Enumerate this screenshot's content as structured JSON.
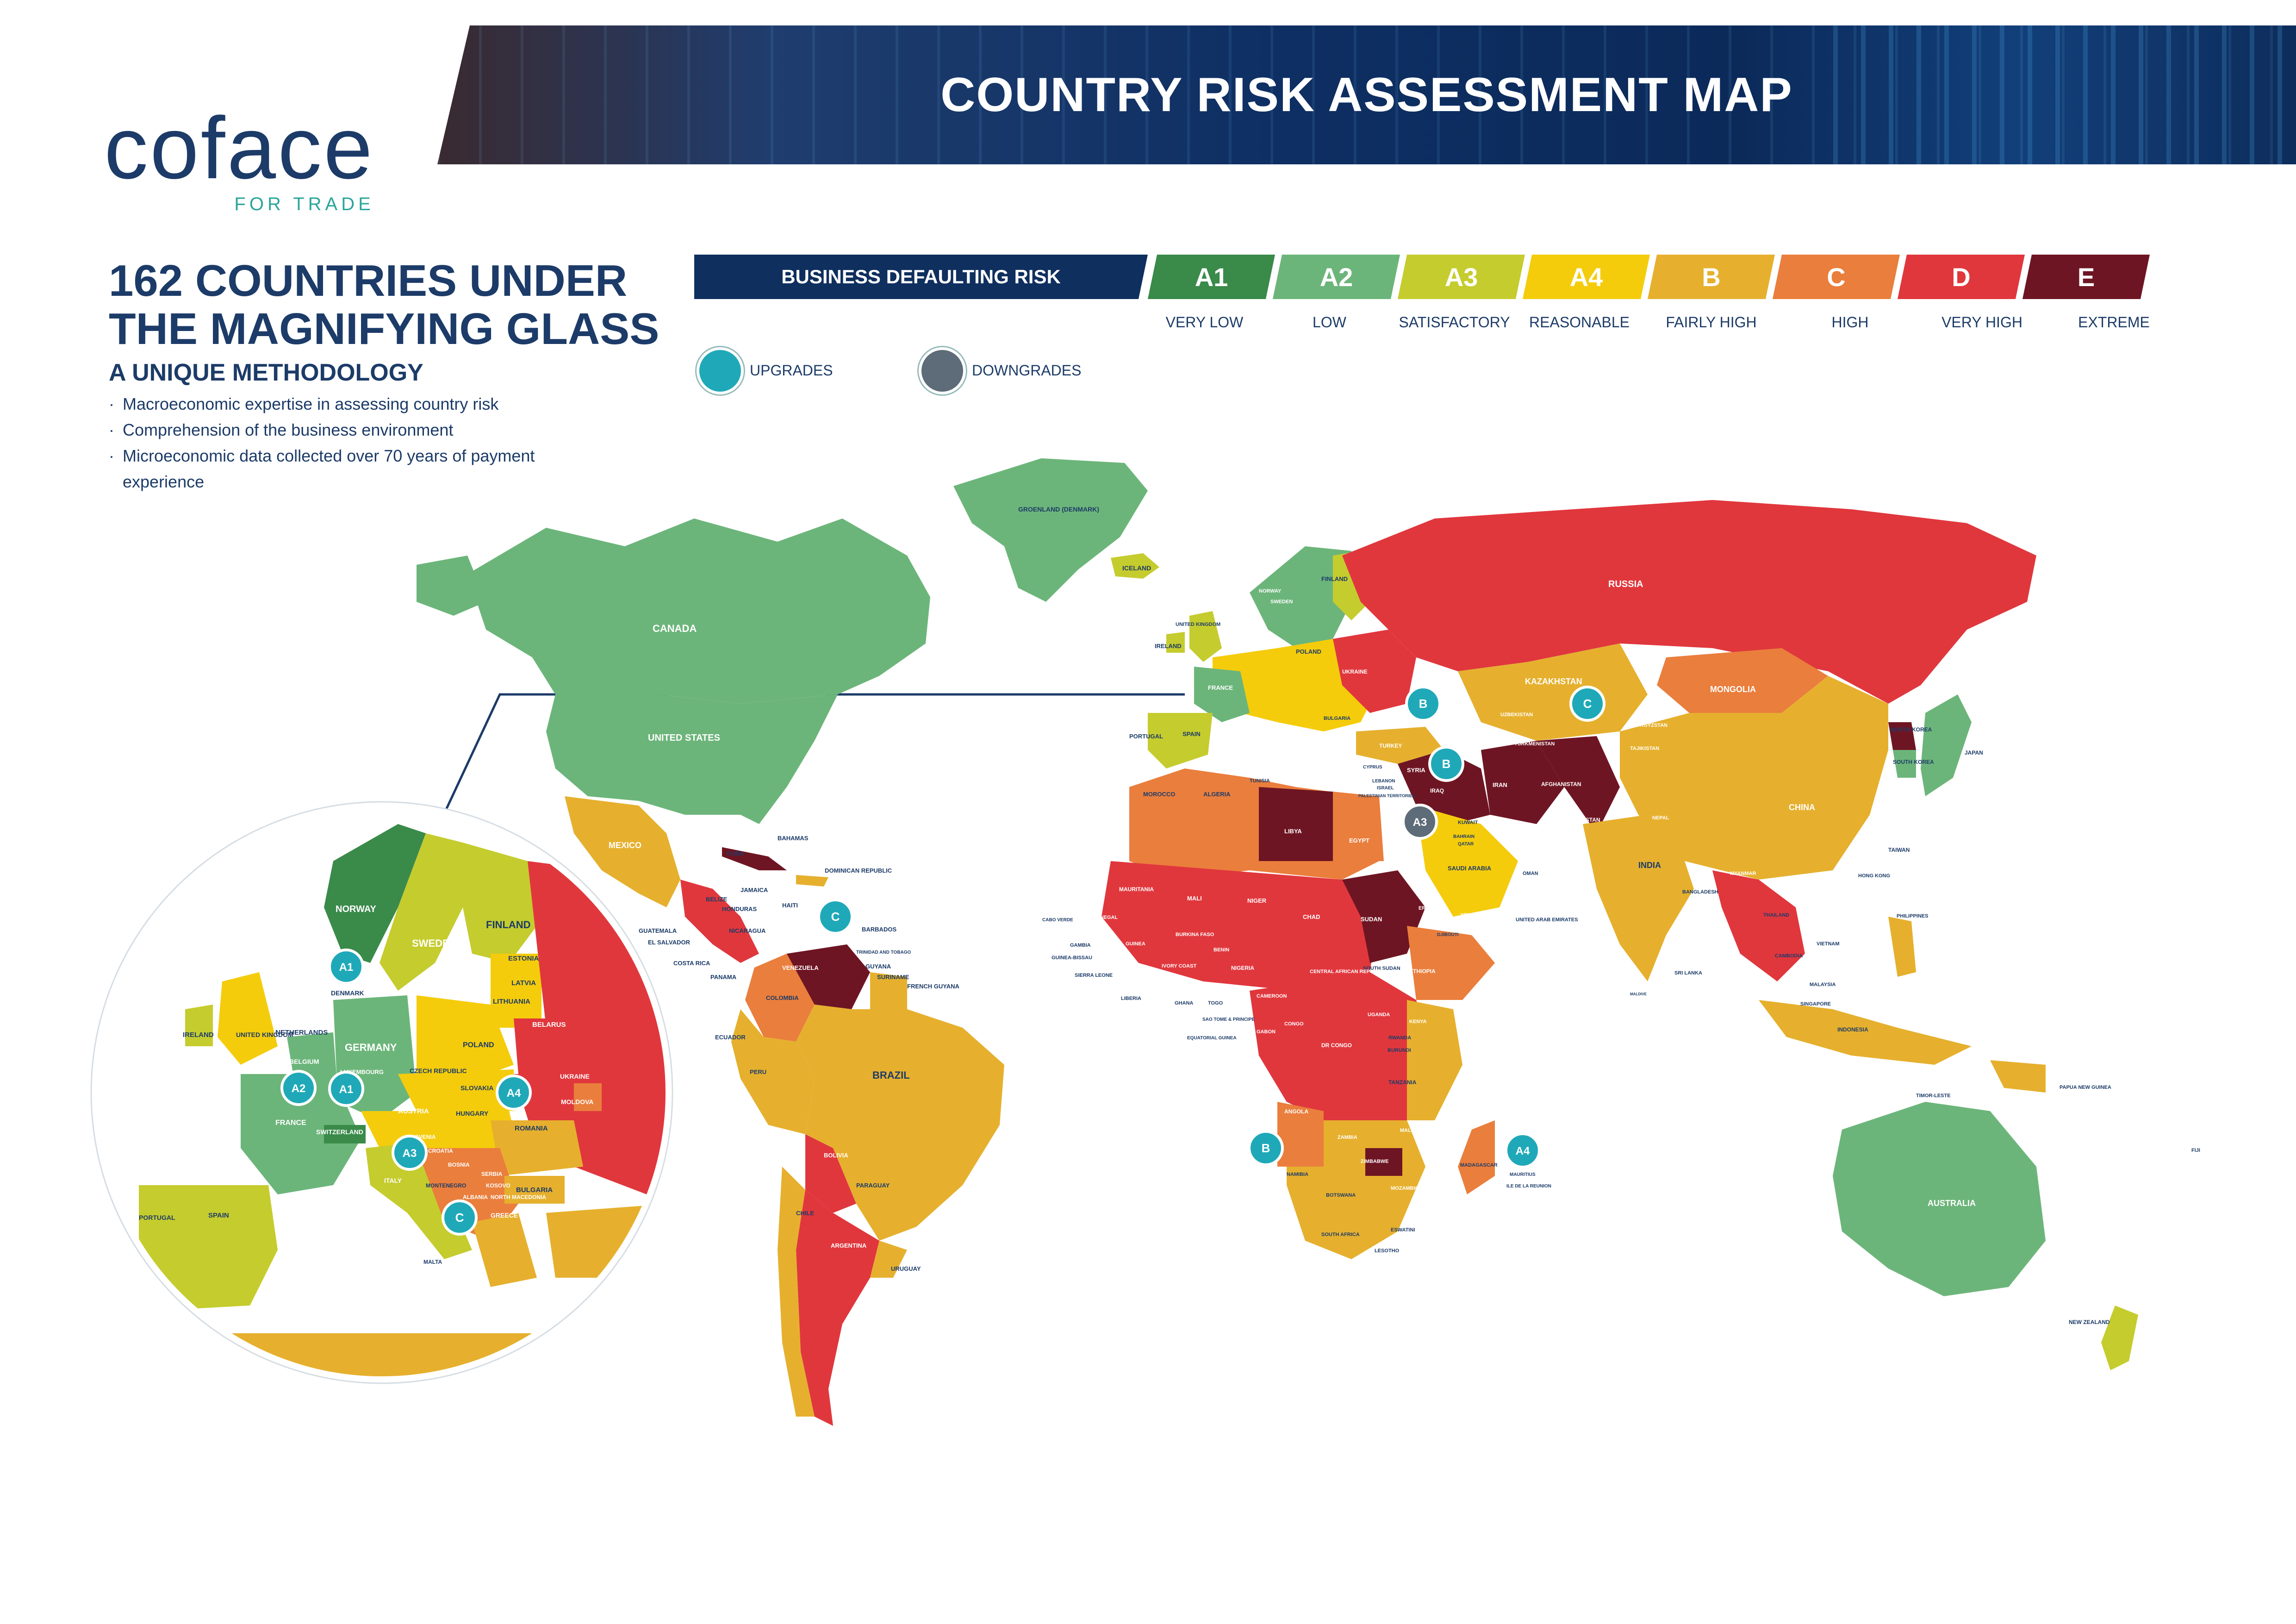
{
  "header": {
    "title": "COUNTRY RISK ASSESSMENT MAP"
  },
  "logo": {
    "word": "coface",
    "tagline": "FOR TRADE"
  },
  "intro": {
    "headline": "162 COUNTRIES UNDER THE MAGNIFYING GLASS",
    "method_title": "A UNIQUE METHODOLOGY",
    "bullets": [
      "Macroeconomic expertise in assessing country risk",
      "Comprehension of the business environment",
      "Microeconomic data collected over 70 years of payment experience"
    ]
  },
  "legend": {
    "title": "BUSINESS DEFAULTING RISK",
    "levels": [
      {
        "code": "A1",
        "label": "VERY LOW",
        "color": "#3a8a4a"
      },
      {
        "code": "A2",
        "label": "LOW",
        "color": "#6cb57a"
      },
      {
        "code": "A3",
        "label": "SATISFACTORY",
        "color": "#c5cc2e"
      },
      {
        "code": "A4",
        "label": "REASONABLE",
        "color": "#f4cc0c"
      },
      {
        "code": "B",
        "label": "FAIRLY HIGH",
        "color": "#e6b02e"
      },
      {
        "code": "C",
        "label": "HIGH",
        "color": "#ea7e3c"
      },
      {
        "code": "D",
        "label": "VERY HIGH",
        "color": "#e0373d"
      },
      {
        "code": "E",
        "label": "EXTREME",
        "color": "#6e1523"
      }
    ],
    "upgrades_label": "UPGRADES",
    "downgrades_label": "DOWNGRADES",
    "upgrade_color": "#1fa9b8",
    "downgrade_color": "#5e6b78"
  },
  "countries": {
    "greenland": "GROENLAND (DENMARK)",
    "iceland": "ICELAND",
    "canada": "CANADA",
    "united_states": "UNITED STATES",
    "mexico": "MEXICO",
    "cuba": "CUBA",
    "bahamas": "BAHAMAS",
    "dominican_republic": "DOMINICAN REPUBLIC",
    "jamaica": "JAMAICA",
    "haiti": "HAITI",
    "belize": "BELIZE",
    "honduras": "HONDURAS",
    "guatemala": "GUATEMALA",
    "el_salvador": "EL SALVADOR",
    "nicaragua": "NICARAGUA",
    "costa_rica": "COSTA RICA",
    "panama": "PANAMA",
    "barbados": "BARBADOS",
    "trinidad": "TRINIDAD AND TOBAGO",
    "venezuela": "VENEZUELA",
    "guyana": "GUYANA",
    "suriname": "SURINAME",
    "french_guyana": "FRENCH GUYANA",
    "colombia": "COLOMBIA",
    "ecuador": "ECUADOR",
    "peru": "PERU",
    "brazil": "BRAZIL",
    "bolivia": "BOLIVIA",
    "paraguay": "PARAGUAY",
    "chile": "CHILE",
    "argentina": "ARGENTINA",
    "uruguay": "URUGUAY",
    "ireland": "IRELAND",
    "united_kingdom": "UNITED KINGDOM",
    "portugal": "PORTUGAL",
    "spain": "SPAIN",
    "france": "FRANCE",
    "norway": "NORWAY",
    "sweden": "SWEDEN",
    "finland": "FINLAND",
    "denmark": "DENMARK",
    "germany": "GERMANY",
    "poland": "POLAND",
    "belarus": "BELARUS",
    "ukraine": "UKRAINE",
    "romania": "ROMANIA",
    "bulgaria": "BULGARIA",
    "russia": "RUSSIA",
    "kazakhstan": "KAZAKHSTAN",
    "mongolia": "MONGOLIA",
    "uzbekistan": "UZBEKISTAN",
    "kyrgyzstan": "KYRGYZSTAN",
    "tajikistan": "TAJIKISTAN",
    "turkmenistan": "TURKMENISTAN",
    "turkey": "TURKEY",
    "cyprus": "CYPRUS",
    "lebanon": "LEBANON",
    "israel": "ISRAEL",
    "palestinian": "PALESTINIAN TERRITORIES",
    "syria": "SYRIA",
    "iraq": "IRAQ",
    "iran": "IRAN",
    "afghanistan": "AFGHANISTAN",
    "pakistan": "PAKISTAN",
    "kuwait": "KUWAIT",
    "bahrain": "BAHRAIN",
    "qatar": "QATAR",
    "saudi_arabia": "SAUDI ARABIA",
    "uae": "UNITED ARAB EMIRATES",
    "oman": "OMAN",
    "yemen": "YEMEN",
    "india": "INDIA",
    "nepal": "NEPAL",
    "bangladesh": "BANGLADESH",
    "sri_lanka": "SRI LANKA",
    "maldive": "MALDIVE",
    "china": "CHINA",
    "north_korea": "NORTH KOREA",
    "south_korea": "SOUTH KOREA",
    "japan": "JAPAN",
    "taiwan": "TAIWAN",
    "hong_kong": "HONG KONG",
    "myanmar": "MYANMAR",
    "laos": "LAOS",
    "thailand": "THAILAND",
    "cambodia": "CAMBODIA",
    "vietnam": "VIETNAM",
    "philippines": "PHILIPPINES",
    "malaysia": "MALAYSIA",
    "singapore": "SINGAPORE",
    "indonesia": "INDONESIA",
    "timor_leste": "TIMOR-LESTE",
    "papua": "PAPUA NEW GUINEA",
    "australia": "AUSTRALIA",
    "new_zealand": "NEW ZEALAND",
    "fiji": "FIJI",
    "morocco": "MOROCCO",
    "algeria": "ALGERIA",
    "tunisia": "TUNISIA",
    "libya": "LIBYA",
    "egypt": "EGYPT",
    "mauritania": "MAURITANIA",
    "mali": "MALI",
    "niger": "NIGER",
    "chad": "CHAD",
    "sudan": "SUDAN",
    "south_sudan": "SOUTH SUDAN",
    "eritrea": "ERITREA",
    "djibouti": "DJIBOUTI",
    "ethiopia": "ETHIOPIA",
    "senegal": "SENEGAL",
    "gambia": "GAMBIA",
    "guinea_bissau": "GUINEA-BISSAU",
    "guinea": "GUINEA",
    "sierra_leone": "SIERRA LEONE",
    "liberia": "LIBERIA",
    "cabo_verde": "CABO VERDE",
    "burkina": "BURKINA FASO",
    "ivory_coast": "IVORY COAST",
    "ghana": "GHANA",
    "togo": "TOGO",
    "benin": "BENIN",
    "nigeria": "NIGERIA",
    "cameroon": "CAMEROON",
    "car": "CENTRAL AFRICAN REPUBLIC",
    "sao_tome": "SAO TOME & PRINCIPE",
    "equatorial_guinea": "EQUATORIAL GUINEA",
    "gabon": "GABON",
    "congo": "CONGO",
    "dr_congo": "DR CONGO",
    "uganda": "UGANDA",
    "kenya": "KENYA",
    "rwanda": "RWANDA",
    "burundi": "BURUNDI",
    "tanzania": "TANZANIA",
    "angola": "ANGOLA",
    "zambia": "ZAMBIA",
    "malawi": "MALAWI",
    "mozambique": "MOZAMBIQUE",
    "zimbabwe": "ZIMBABWE",
    "namibia": "NAMIBIA",
    "botswana": "BOTSWANA",
    "south_africa": "SOUTH AFRICA",
    "eswatini": "ESWATINI",
    "lesotho": "LESOTHO",
    "madagascar": "MADAGASCAR",
    "mauritius": "MAURITIUS",
    "reunion": "ILE DE LA REUNION"
  },
  "europe_inset": {
    "labels": {
      "norway": "NORWAY",
      "sweden": "SWEDEN",
      "finland": "FINLAND",
      "estonia": "ESTONIA",
      "latvia": "LATVIA",
      "lithuania": "LITHUANIA",
      "denmark": "DENMARK",
      "ireland": "IRELAND",
      "united_kingdom": "UNITED KINGDOM",
      "netherlands": "NETHERLANDS",
      "belgium": "BELGIUM",
      "luxembourg": "LUXEMBOURG",
      "germany": "GERMANY",
      "poland": "POLAND",
      "belarus": "BELARUS",
      "czech": "CZECH REPUBLIC",
      "slovakia": "SLOVAKIA",
      "austria": "AUSTRIA",
      "switzerland": "SWITZERLAND",
      "hungary": "HUNGARY",
      "ukraine": "UKRAINE",
      "moldova": "MOLDOVA",
      "romania": "ROMANIA",
      "france": "FRANCE",
      "slovenia": "SLOVENIA",
      "croatia": "CROATIA",
      "bosnia": "BOSNIA",
      "serbia": "SERBIA",
      "montenegro": "MONTENEGRO",
      "kosovo": "KOSOVO",
      "albania": "ALBANIA",
      "north_macedonia": "NORTH MACEDONIA",
      "bulgaria": "BULGARIA",
      "greece": "GREECE",
      "italy": "ITALY",
      "portugal": "PORTUGAL",
      "spain": "SPAIN",
      "malta": "MALTA"
    }
  },
  "rating_changes": [
    {
      "code": "B",
      "type": "upgrade",
      "where": "georgia"
    },
    {
      "code": "C",
      "type": "upgrade",
      "where": "kyrgyzstan"
    },
    {
      "code": "B",
      "type": "upgrade",
      "where": "iraq"
    },
    {
      "code": "A3",
      "type": "downgrade",
      "where": "saudi-arabia"
    },
    {
      "code": "C",
      "type": "upgrade",
      "where": "barbados"
    },
    {
      "code": "B",
      "type": "upgrade",
      "where": "namibia"
    },
    {
      "code": "A4",
      "type": "upgrade",
      "where": "mauritius"
    },
    {
      "code": "A1",
      "type": "upgrade",
      "where": "denmark"
    },
    {
      "code": "A2",
      "type": "upgrade",
      "where": "france"
    },
    {
      "code": "A1",
      "type": "upgrade",
      "where": "switzerland"
    },
    {
      "code": "A4",
      "type": "upgrade",
      "where": "slovakia"
    },
    {
      "code": "A3",
      "type": "upgrade",
      "where": "italy"
    },
    {
      "code": "C",
      "type": "upgrade",
      "where": "greece"
    }
  ]
}
